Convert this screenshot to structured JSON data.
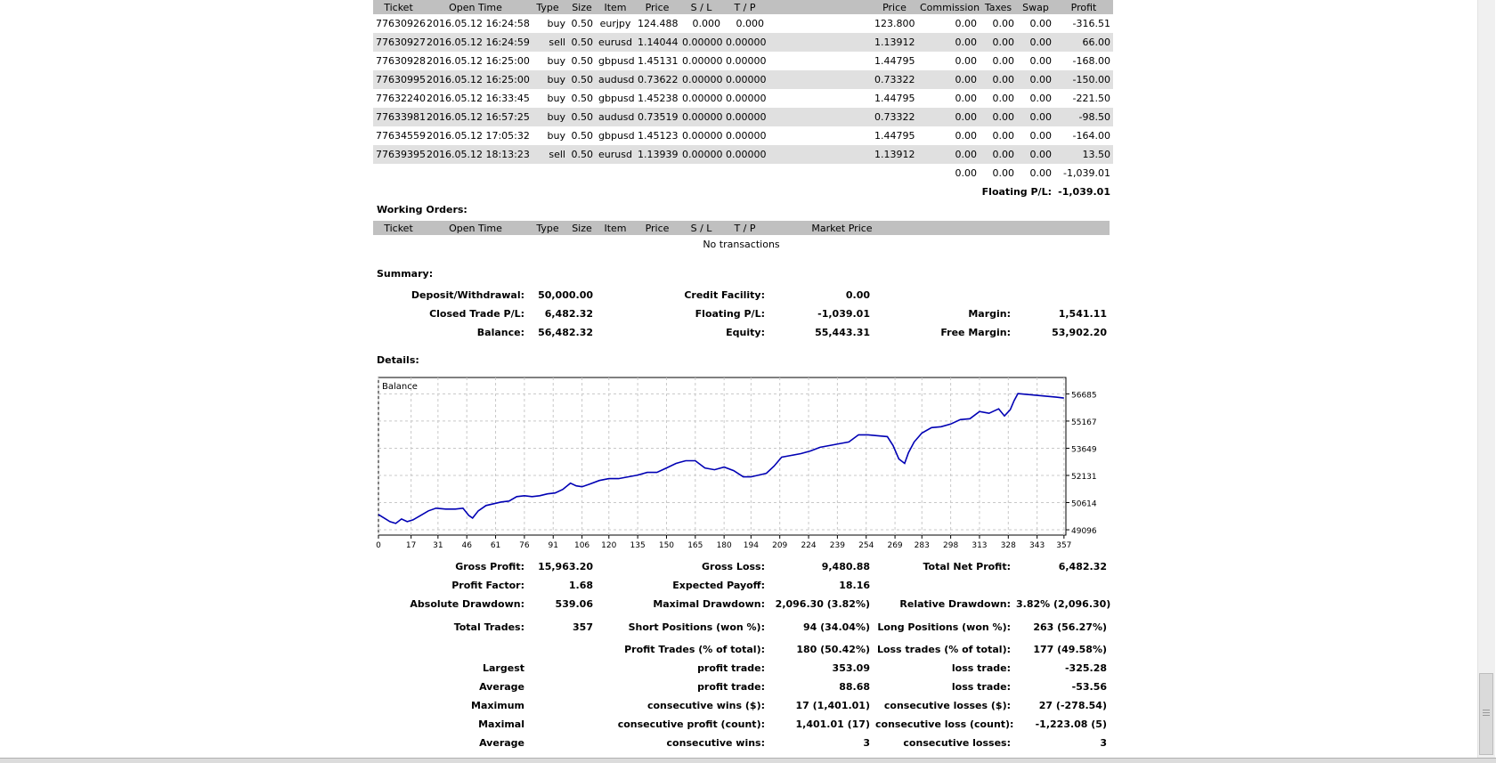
{
  "positions": {
    "headers": [
      "Ticket",
      "Open Time",
      "Type",
      "Size",
      "Item",
      "Price",
      "S / L",
      "T / P",
      "",
      "Price",
      "Commission",
      "Taxes",
      "Swap",
      "Profit"
    ],
    "rows": [
      [
        "77630926",
        "2016.05.12 16:24:58",
        "buy",
        "0.50",
        "eurjpy",
        "124.488",
        "0.000",
        "0.000",
        "",
        "123.800",
        "0.00",
        "0.00",
        "0.00",
        "-316.51"
      ],
      [
        "77630927",
        "2016.05.12 16:24:59",
        "sell",
        "0.50",
        "eurusd",
        "1.14044",
        "0.00000",
        "0.00000",
        "",
        "1.13912",
        "0.00",
        "0.00",
        "0.00",
        "66.00"
      ],
      [
        "77630928",
        "2016.05.12 16:25:00",
        "buy",
        "0.50",
        "gbpusd",
        "1.45131",
        "0.00000",
        "0.00000",
        "",
        "1.44795",
        "0.00",
        "0.00",
        "0.00",
        "-168.00"
      ],
      [
        "77630995",
        "2016.05.12 16:25:00",
        "buy",
        "0.50",
        "audusd",
        "0.73622",
        "0.00000",
        "0.00000",
        "",
        "0.73322",
        "0.00",
        "0.00",
        "0.00",
        "-150.00"
      ],
      [
        "77632240",
        "2016.05.12 16:33:45",
        "buy",
        "0.50",
        "gbpusd",
        "1.45238",
        "0.00000",
        "0.00000",
        "",
        "1.44795",
        "0.00",
        "0.00",
        "0.00",
        "-221.50"
      ],
      [
        "77633981",
        "2016.05.12 16:57:25",
        "buy",
        "0.50",
        "audusd",
        "0.73519",
        "0.00000",
        "0.00000",
        "",
        "0.73322",
        "0.00",
        "0.00",
        "0.00",
        "-98.50"
      ],
      [
        "77634559",
        "2016.05.12 17:05:32",
        "buy",
        "0.50",
        "gbpusd",
        "1.45123",
        "0.00000",
        "0.00000",
        "",
        "1.44795",
        "0.00",
        "0.00",
        "0.00",
        "-164.00"
      ],
      [
        "77639395",
        "2016.05.12 18:13:23",
        "sell",
        "0.50",
        "eurusd",
        "1.13939",
        "0.00000",
        "0.00000",
        "",
        "1.13912",
        "0.00",
        "0.00",
        "0.00",
        "13.50"
      ]
    ],
    "totals": [
      "0.00",
      "0.00",
      "0.00",
      "-1,039.01"
    ],
    "floating_label": "Floating P/L:",
    "floating_value": "-1,039.01"
  },
  "working_orders": {
    "title": "Working Orders:",
    "headers": [
      "Ticket",
      "Open Time",
      "Type",
      "Size",
      "Item",
      "Price",
      "S / L",
      "T / P",
      "Market Price",
      ""
    ],
    "empty_text": "No transactions"
  },
  "summary": {
    "title": "Summary:",
    "deposit_label": "Deposit/Withdrawal:",
    "deposit_value": "50,000.00",
    "credit_label": "Credit Facility:",
    "credit_value": "0.00",
    "closed_label": "Closed Trade P/L:",
    "closed_value": "6,482.32",
    "floating_label": "Floating P/L:",
    "floating_value": "-1,039.01",
    "margin_label": "Margin:",
    "margin_value": "1,541.11",
    "balance_label": "Balance:",
    "balance_value": "56,482.32",
    "equity_label": "Equity:",
    "equity_value": "55,443.31",
    "free_margin_label": "Free Margin:",
    "free_margin_value": "53,902.20"
  },
  "details": {
    "title": "Details:",
    "rows": [
      [
        "Gross Profit:",
        "15,963.20",
        "Gross Loss:",
        "9,480.88",
        "Total Net Profit:",
        "6,482.32"
      ],
      [
        "Profit Factor:",
        "1.68",
        "Expected Payoff:",
        "18.16",
        "",
        ""
      ],
      [
        "Absolute Drawdown:",
        "539.06",
        "Maximal Drawdown:",
        "2,096.30 (3.82%)",
        "Relative Drawdown:",
        "3.82% (2,096.30)"
      ],
      [
        "Total Trades:",
        "357",
        "Short Positions (won %):",
        "94 (34.04%)",
        "Long Positions (won %):",
        "263 (56.27%)"
      ],
      [
        "",
        "",
        "Profit Trades (% of total):",
        "180 (50.42%)",
        "Loss trades (% of total):",
        "177 (49.58%)"
      ],
      [
        "Largest",
        "",
        "profit trade:",
        "353.09",
        "loss trade:",
        "-325.28"
      ],
      [
        "Average",
        "",
        "profit trade:",
        "88.68",
        "loss trade:",
        "-53.56"
      ],
      [
        "Maximum",
        "",
        "consecutive wins ($):",
        "17 (1,401.01)",
        "consecutive losses ($):",
        "27 (-278.54)"
      ],
      [
        "Maximal",
        "",
        "consecutive profit (count):",
        "1,401.01 (17)",
        "consecutive loss (count):",
        "-1,223.08 (5)"
      ],
      [
        "Average",
        "",
        "consecutive wins:",
        "3",
        "consecutive losses:",
        "3"
      ]
    ]
  },
  "chart_data": {
    "type": "line",
    "title": "Balance",
    "xlabel": "",
    "ylabel": "",
    "x_ticks": [
      0,
      17,
      31,
      46,
      61,
      76,
      91,
      106,
      120,
      135,
      150,
      165,
      180,
      194,
      209,
      224,
      239,
      254,
      269,
      283,
      298,
      313,
      328,
      343,
      357
    ],
    "y_ticks": [
      49096,
      50614,
      52131,
      53649,
      55167,
      56685
    ],
    "xlim": [
      0,
      358
    ],
    "ylim": [
      48800,
      57600
    ],
    "grid": true,
    "line_color": "#0000b4",
    "series": [
      {
        "points": [
          [
            0,
            49950
          ],
          [
            3,
            49750
          ],
          [
            6,
            49550
          ],
          [
            9,
            49450
          ],
          [
            12,
            49700
          ],
          [
            15,
            49550
          ],
          [
            18,
            49650
          ],
          [
            22,
            49900
          ],
          [
            26,
            50150
          ],
          [
            30,
            50300
          ],
          [
            35,
            50250
          ],
          [
            40,
            50250
          ],
          [
            44,
            50300
          ],
          [
            47,
            49900
          ],
          [
            49,
            49750
          ],
          [
            52,
            50150
          ],
          [
            56,
            50450
          ],
          [
            60,
            50550
          ],
          [
            64,
            50650
          ],
          [
            68,
            50700
          ],
          [
            72,
            50950
          ],
          [
            76,
            51000
          ],
          [
            80,
            50950
          ],
          [
            84,
            51000
          ],
          [
            88,
            51100
          ],
          [
            92,
            51150
          ],
          [
            96,
            51350
          ],
          [
            100,
            51700
          ],
          [
            103,
            51550
          ],
          [
            106,
            51500
          ],
          [
            110,
            51650
          ],
          [
            115,
            51850
          ],
          [
            120,
            51950
          ],
          [
            125,
            51950
          ],
          [
            130,
            52050
          ],
          [
            135,
            52150
          ],
          [
            140,
            52300
          ],
          [
            145,
            52300
          ],
          [
            150,
            52550
          ],
          [
            155,
            52800
          ],
          [
            160,
            52950
          ],
          [
            165,
            52950
          ],
          [
            170,
            52550
          ],
          [
            175,
            52450
          ],
          [
            180,
            52600
          ],
          [
            185,
            52400
          ],
          [
            190,
            52050
          ],
          [
            194,
            52050
          ],
          [
            198,
            52150
          ],
          [
            202,
            52250
          ],
          [
            206,
            52650
          ],
          [
            210,
            53150
          ],
          [
            215,
            53250
          ],
          [
            220,
            53350
          ],
          [
            225,
            53500
          ],
          [
            230,
            53700
          ],
          [
            235,
            53800
          ],
          [
            240,
            53900
          ],
          [
            245,
            54000
          ],
          [
            250,
            54400
          ],
          [
            255,
            54400
          ],
          [
            260,
            54350
          ],
          [
            265,
            54300
          ],
          [
            268,
            53800
          ],
          [
            271,
            53050
          ],
          [
            274,
            52800
          ],
          [
            276,
            53400
          ],
          [
            279,
            54000
          ],
          [
            283,
            54500
          ],
          [
            288,
            54800
          ],
          [
            293,
            54850
          ],
          [
            298,
            55000
          ],
          [
            303,
            55250
          ],
          [
            308,
            55300
          ],
          [
            313,
            55700
          ],
          [
            318,
            55600
          ],
          [
            323,
            55850
          ],
          [
            326,
            55450
          ],
          [
            329,
            55800
          ],
          [
            331,
            56300
          ],
          [
            333,
            56700
          ],
          [
            338,
            56650
          ],
          [
            343,
            56600
          ],
          [
            348,
            56550
          ],
          [
            353,
            56500
          ],
          [
            357,
            56450
          ]
        ]
      }
    ]
  }
}
